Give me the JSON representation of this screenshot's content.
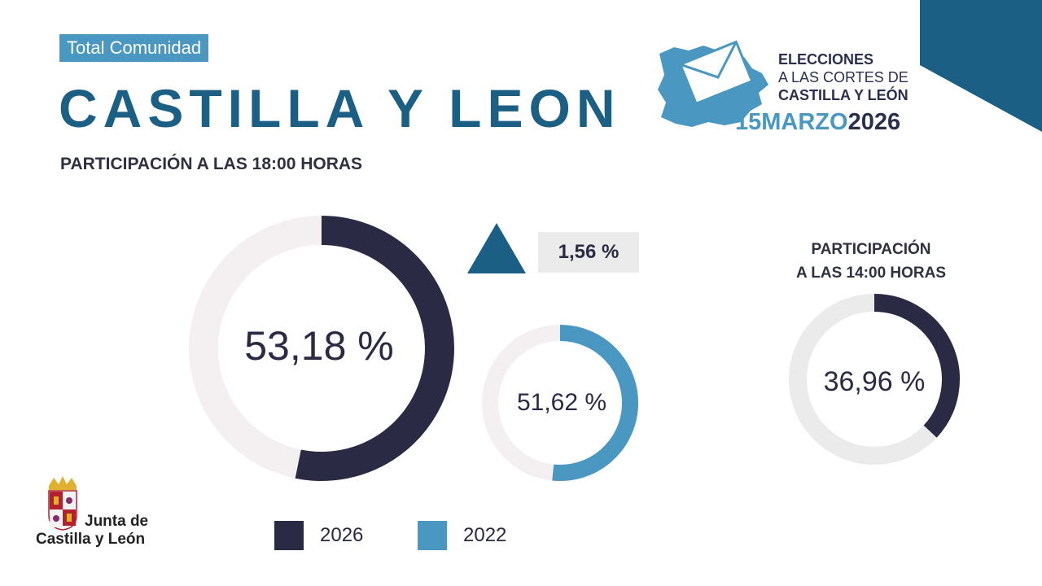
{
  "header": {
    "badge": "Total Comunidad",
    "title": "CASTILLA Y LEON",
    "subtitle": "PARTICIPACIÓN A LAS 18:00 HORAS"
  },
  "election_logo": {
    "line1": "ELECCIONES",
    "line2": "A LAS CORTES DE",
    "line3": "CASTILLA Y LEÓN",
    "date_day_month": "15MARZO",
    "date_year": "2026"
  },
  "delta": {
    "label": "1,56 %",
    "direction": "up"
  },
  "aside": {
    "title_line1": "PARTICIPACIÓN",
    "title_line2": "A LAS 14:00 HORAS"
  },
  "footer": {
    "org_line1": "Junta de",
    "org_line2": "Castilla y León"
  },
  "colors": {
    "dark": "#2a2a44",
    "light_blue": "#4a97c1",
    "title_blue": "#1c5f85",
    "track": "#f4f0f2",
    "track_grey": "#ebebeb"
  },
  "chart_data": [
    {
      "type": "pie",
      "subtype": "donut",
      "series": [
        {
          "name": "2026",
          "value": 53.18,
          "label": "53,18 %"
        }
      ],
      "max": 100,
      "color": "#2a2a44"
    },
    {
      "type": "pie",
      "subtype": "donut",
      "series": [
        {
          "name": "2022",
          "value": 51.62,
          "label": "51,62 %"
        }
      ],
      "max": 100,
      "color": "#4a97c1"
    },
    {
      "type": "pie",
      "subtype": "donut",
      "series": [
        {
          "name": "2026",
          "value": 36.96,
          "label": "36,96 %"
        }
      ],
      "max": 100,
      "color": "#2a2a44"
    }
  ],
  "legend": [
    {
      "label": "2026",
      "color": "#2a2a44"
    },
    {
      "label": "2022",
      "color": "#4a97c1"
    }
  ]
}
